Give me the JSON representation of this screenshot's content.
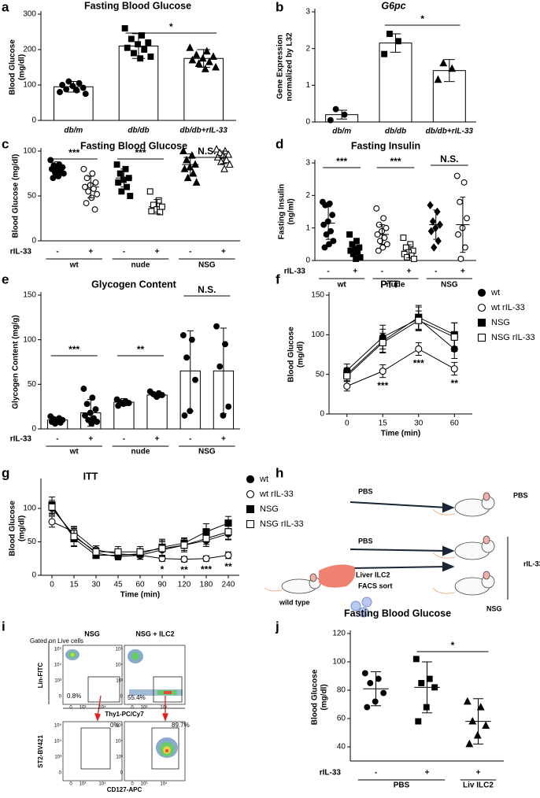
{
  "chart_data": [
    {
      "type": "bar",
      "panel": "a",
      "title": "Fasting Blood Glucose",
      "ylabel": [
        "Blood Glucose",
        "(mg/dl)"
      ],
      "categories": [
        "db/m",
        "db/db",
        "db/db+rIL-33"
      ],
      "means": [
        95,
        210,
        175
      ],
      "errors": [
        15,
        35,
        25
      ],
      "points": [
        [
          80,
          85,
          88,
          92,
          97,
          100,
          105,
          110,
          75
        ],
        [
          260,
          240,
          230,
          220,
          215,
          205,
          200,
          190,
          180,
          175
        ],
        [
          205,
          195,
          185,
          180,
          175,
          170,
          165,
          160,
          150,
          145
        ]
      ],
      "markers": [
        "circle",
        "square",
        "triangle"
      ],
      "ylim": [
        0,
        300
      ],
      "yticks": [
        0,
        100,
        200,
        300
      ],
      "annotations": [
        "*"
      ]
    },
    {
      "type": "bar",
      "panel": "b",
      "title": "G6pc",
      "ylabel": [
        "Gene Expression",
        "normalized by L32"
      ],
      "categories": [
        "db/m",
        "db/db",
        "db/db+rIL-33"
      ],
      "means": [
        0.2,
        2.15,
        1.4
      ],
      "errors": [
        0.12,
        0.25,
        0.3
      ],
      "points": [
        [
          0.05,
          0.2,
          0.35
        ],
        [
          1.85,
          2.2,
          2.4
        ],
        [
          1.15,
          1.45,
          1.6
        ]
      ],
      "markers": [
        "circle",
        "square",
        "triangle"
      ],
      "ylim": [
        0,
        3
      ],
      "yticks": [
        0,
        1,
        2,
        3
      ],
      "annotations": [
        "*"
      ]
    },
    {
      "type": "dot",
      "panel": "c",
      "title": "Fasting Blood Glucose",
      "ylabel": [
        "Blood Glucose (mg/dl)"
      ],
      "categories": [
        "-",
        "+",
        "-",
        "+",
        "-",
        "+"
      ],
      "groups": [
        "wt",
        "nude",
        "NSG"
      ],
      "row_label": "rIL-33",
      "means": [
        82,
        60,
        70,
        38,
        85,
        93
      ],
      "errors": [
        6,
        12,
        10,
        8,
        12,
        7
      ],
      "points": [
        [
          90,
          85,
          84,
          82,
          80,
          80,
          78,
          76,
          75,
          72,
          70
        ],
        [
          80,
          75,
          70,
          65,
          62,
          60,
          58,
          55,
          52,
          48,
          42,
          35
        ],
        [
          85,
          80,
          75,
          70,
          68,
          65,
          60,
          55,
          50
        ],
        [
          55,
          45,
          40,
          38,
          35,
          33,
          32
        ],
        [
          100,
          95,
          90,
          85,
          82,
          80,
          75,
          70,
          65
        ],
        [
          102,
          100,
          98,
          96,
          95,
          93,
          90,
          88,
          85,
          80
        ]
      ],
      "markers": [
        "circle",
        "open-circle",
        "square",
        "open-square",
        "triangle",
        "open-triangle"
      ],
      "ylim": [
        0,
        100
      ],
      "yticks": [
        0,
        50,
        100
      ],
      "annotations": [
        "***",
        "***",
        "N.S."
      ]
    },
    {
      "type": "dot",
      "panel": "d",
      "title": "Fasting Insulin",
      "ylabel": [
        "Fasting Insulin",
        "(ng/ml)"
      ],
      "categories": [
        "-",
        "+",
        "-",
        "+",
        "-",
        "+"
      ],
      "groups": [
        "wt",
        "nude",
        "NSG"
      ],
      "row_label": "rIL-33",
      "means": [
        1.15,
        0.38,
        0.8,
        0.28,
        1.1,
        1.1
      ],
      "errors": [
        0.5,
        0.2,
        0.3,
        0.2,
        0.45,
        0.85
      ],
      "points": [
        [
          1.8,
          1.75,
          1.7,
          1.4,
          1.2,
          1.1,
          0.9,
          0.8,
          0.6,
          0.5,
          0.4
        ],
        [
          0.8,
          0.6,
          0.5,
          0.4,
          0.35,
          0.3,
          0.25,
          0.2,
          0.1,
          0.05
        ],
        [
          1.6,
          1.3,
          1.1,
          1.0,
          0.9,
          0.8,
          0.7,
          0.6,
          0.5,
          0.4,
          0.3
        ],
        [
          0.7,
          0.5,
          0.4,
          0.3,
          0.25,
          0.2,
          0.15,
          0.1,
          0.05
        ],
        [
          1.7,
          1.5,
          1.2,
          1.1,
          1.0,
          0.9,
          0.6,
          0.4
        ],
        [
          2.6,
          2.4,
          1.8,
          1.3,
          1.0,
          0.8,
          0.4,
          0.05
        ]
      ],
      "markers": [
        "circle",
        "square",
        "open-circle",
        "open-square",
        "diamond",
        "open-circle"
      ],
      "ylim": [
        0,
        3
      ],
      "yticks": [
        0,
        1,
        2,
        3
      ],
      "annotations": [
        "***",
        "***",
        "N.S."
      ]
    },
    {
      "type": "bar",
      "panel": "e",
      "title": "Glycogen Content",
      "ylabel": [
        "Glycogen Content (mg/g)"
      ],
      "categories": [
        "-",
        "+",
        "-",
        "+",
        "-",
        "+"
      ],
      "groups": [
        "wt",
        "nude",
        "NSG"
      ],
      "row_label": "rIL-33",
      "means": [
        10,
        18,
        30,
        38,
        65,
        65
      ],
      "errors": [
        3,
        15,
        4,
        3,
        45,
        48
      ],
      "points": [
        [
          14,
          12,
          11,
          10,
          9,
          8,
          7,
          6
        ],
        [
          45,
          35,
          28,
          22,
          18,
          15,
          12,
          10,
          8,
          6
        ],
        [
          33,
          31,
          30,
          29,
          28,
          26
        ],
        [
          42,
          40,
          39,
          38,
          36
        ],
        [
          105,
          100,
          80,
          55,
          20,
          15
        ],
        [
          115,
          95,
          70,
          25,
          15
        ]
      ],
      "markers": [
        "circle",
        "circle",
        "circle",
        "circle",
        "circle",
        "circle"
      ],
      "ylim": [
        0,
        150
      ],
      "yticks": [
        0,
        50,
        100,
        150
      ],
      "annotations": [
        "***",
        "**",
        "N.S."
      ]
    },
    {
      "type": "line",
      "panel": "f",
      "title": "PTT",
      "ylabel": [
        "Blood Glucose",
        "(mg/dl)"
      ],
      "xlabel": "Time (min)",
      "categories": [
        "0",
        "15",
        "30",
        "60"
      ],
      "series": [
        {
          "name": "wt",
          "marker": "circle",
          "values": [
            55,
            97,
            120,
            82
          ],
          "errors": [
            8,
            15,
            15,
            12
          ]
        },
        {
          "name": "wt rIL-33",
          "marker": "open-circle",
          "values": [
            35,
            54,
            82,
            57
          ],
          "errors": [
            6,
            8,
            8,
            8
          ]
        },
        {
          "name": "NSG",
          "marker": "square",
          "values": [
            50,
            92,
            122,
            100
          ],
          "errors": [
            8,
            15,
            15,
            15
          ]
        },
        {
          "name": "NSG rIL-33",
          "marker": "open-square",
          "values": [
            48,
            90,
            118,
            97
          ],
          "errors": [
            7,
            12,
            12,
            18
          ]
        }
      ],
      "star_labels": [
        null,
        "***",
        "***",
        "**"
      ],
      "ylim": [
        0,
        150
      ],
      "yticks": [
        0,
        50,
        100,
        150
      ]
    },
    {
      "type": "line",
      "panel": "g",
      "title": "ITT",
      "ylabel": [
        "Blood Glucose",
        "(mg/dl)"
      ],
      "xlabel": "Time (min)",
      "categories": [
        "0",
        "15",
        "30",
        "45",
        "60",
        "90",
        "120",
        "180",
        "240"
      ],
      "series": [
        {
          "name": "wt",
          "marker": "circle",
          "values": [
            100,
            60,
            33,
            28,
            30,
            38,
            45,
            52,
            62
          ],
          "errors": [
            10,
            10,
            5,
            5,
            6,
            12,
            8,
            6,
            8
          ]
        },
        {
          "name": "wt rIL-33",
          "marker": "open-circle",
          "values": [
            80,
            65,
            38,
            32,
            30,
            25,
            24,
            25,
            30
          ],
          "errors": [
            8,
            8,
            6,
            6,
            6,
            4,
            4,
            4,
            5
          ]
        },
        {
          "name": "NSG",
          "marker": "square",
          "values": [
            105,
            55,
            30,
            30,
            32,
            42,
            48,
            65,
            78
          ],
          "errors": [
            12,
            12,
            5,
            6,
            8,
            12,
            8,
            12,
            10
          ]
        },
        {
          "name": "NSG rIL-33",
          "marker": "open-square",
          "values": [
            102,
            58,
            35,
            35,
            35,
            40,
            45,
            55,
            65
          ],
          "errors": [
            10,
            14,
            6,
            8,
            8,
            12,
            10,
            12,
            12
          ]
        }
      ],
      "star_labels": [
        null,
        null,
        null,
        null,
        null,
        "*",
        "**",
        "***",
        "**"
      ],
      "ylim": [
        0,
        140
      ],
      "yticks": [
        0,
        50,
        100
      ]
    },
    {
      "type": "dot",
      "panel": "j",
      "title": "Fasting Blood Glucose",
      "ylabel": [
        "Blood Glucose",
        "(mg/dl)"
      ],
      "categories": [
        "-",
        "+",
        "+"
      ],
      "groups": [
        "PBS",
        "Liv ILC2"
      ],
      "row_label": "rIL-33",
      "means": [
        81,
        82,
        58
      ],
      "errors": [
        12,
        18,
        16
      ],
      "points": [
        [
          92,
          88,
          85,
          78,
          72,
          68
        ],
        [
          102,
          88,
          85,
          82,
          68,
          58
        ],
        [
          72,
          68,
          58,
          55,
          48,
          42
        ]
      ],
      "markers": [
        "circle",
        "square",
        "triangle"
      ],
      "ylim": [
        30,
        120
      ],
      "yticks": [
        40,
        60,
        80,
        100,
        120
      ],
      "annotations": [
        "*"
      ]
    }
  ],
  "panel_h": {
    "label": "h",
    "treatments": [
      "PBS",
      "PBS"
    ],
    "transfer": [
      "Liver ILC2",
      "FACS sort"
    ],
    "outcomes": [
      "PBS",
      "rIL-33"
    ],
    "donor": "wild type",
    "recipient": "NSG"
  },
  "panel_i": {
    "label": "i",
    "gate_text": "Gated on Live cells",
    "columns": [
      "NSG",
      "NSG + ILC2"
    ],
    "top": {
      "ylabel": "Lin-FITC",
      "xlabel": "Thy1-PC/Cy7",
      "percents": [
        "0.8%",
        "55.4%"
      ]
    },
    "bottom": {
      "ylabel": "ST2-BV421",
      "xlabel": "CD127-APC",
      "percents": [
        "0%",
        "89.7%"
      ]
    },
    "xticks": [
      "0",
      "10³",
      "10⁴"
    ],
    "yticks": [
      "0",
      "10³",
      "10⁴",
      "10⁵"
    ]
  }
}
